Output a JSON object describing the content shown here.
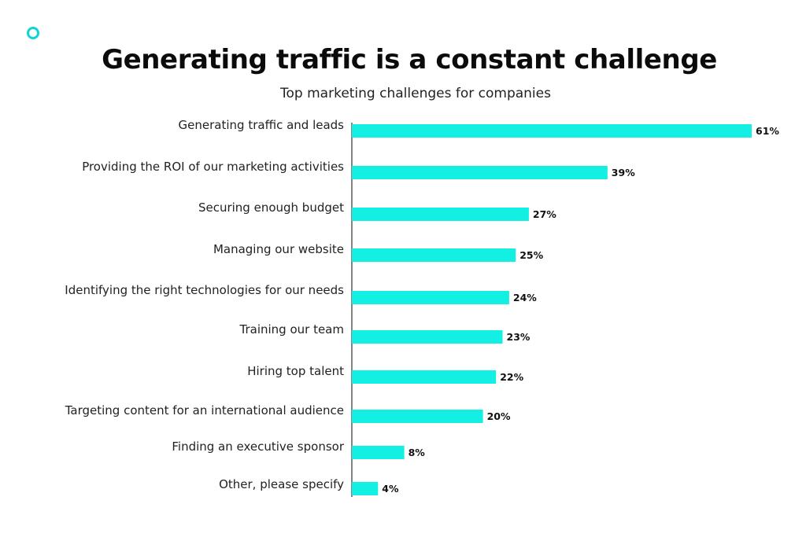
{
  "header": {
    "title": "Generating traffic is a constant challenge",
    "subtitle": "Top marketing challenges for companies"
  },
  "colors": {
    "bar": "#13efe3",
    "accent_ring": "#13d3d3",
    "axis": "#333333"
  },
  "chart_data": {
    "type": "bar",
    "orientation": "horizontal",
    "title": "Generating traffic is a constant challenge",
    "subtitle": "Top marketing challenges for companies",
    "categories": [
      "Generating traffic and leads",
      "Providing the ROI of our marketing activities",
      "Securing enough budget",
      "Managing our website",
      "Identifying the right technologies for our needs",
      "Training our team",
      "Hiring top talent",
      "Targeting content for an international audience",
      "Finding an executive sponsor",
      "Other, please specify"
    ],
    "values": [
      61,
      39,
      27,
      25,
      24,
      23,
      22,
      20,
      8,
      4
    ],
    "value_labels": [
      "61%",
      "39%",
      "27%",
      "25%",
      "24%",
      "23%",
      "22%",
      "20%",
      "8%",
      "4%"
    ],
    "xlabel": "",
    "ylabel": "",
    "xlim": [
      0,
      61
    ],
    "grid": false,
    "legend": "none"
  }
}
